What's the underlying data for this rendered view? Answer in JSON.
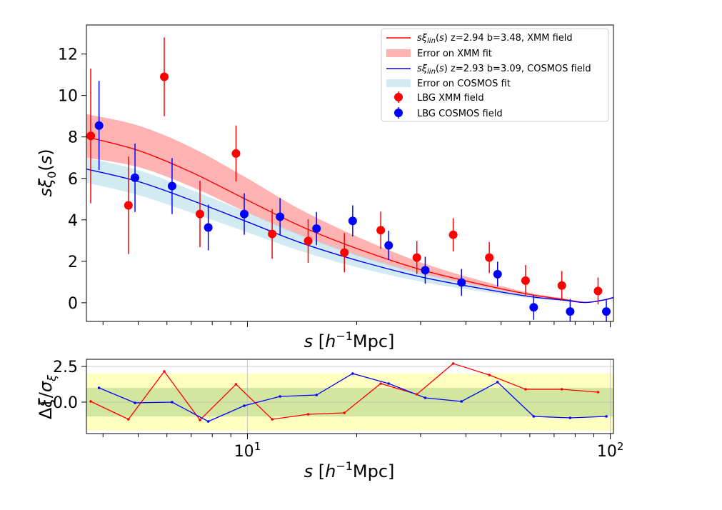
{
  "chart_data": [
    {
      "type": "scatter",
      "xscale": "log",
      "xlim": [
        3.6,
        102
      ],
      "ylim": [
        -0.9,
        13.4
      ],
      "xlabel": "s [h⁻¹Mpc]",
      "ylabel": "sξ₀(s)",
      "ytick_labels": [
        "0",
        "2",
        "4",
        "6",
        "8",
        "10",
        "12"
      ],
      "legend_position": "top-right",
      "legend": [
        {
          "label": "sξ_lin(s) z=2.94 b=3.48, XMM field",
          "color": "#ff0000",
          "kind": "line"
        },
        {
          "label": "Error on XMM fit",
          "color": "#ff9999",
          "kind": "band"
        },
        {
          "label": "sξ_lin(s) z=2.93 b=3.09, COSMOS field",
          "color": "#0000ff",
          "kind": "line"
        },
        {
          "label": "Error on  COSMOS fit",
          "color": "#add8e6",
          "kind": "band"
        },
        {
          "label": "LBG XMM field",
          "color": "#ff0000",
          "kind": "marker"
        },
        {
          "label": "LBG COSMOS field",
          "color": "#0000ff",
          "kind": "marker"
        }
      ],
      "series": [
        {
          "name": "LBG XMM field",
          "color": "#ff0000",
          "x": [
            3.7,
            4.7,
            5.9,
            7.4,
            9.3,
            11.7,
            14.7,
            18.5,
            23.3,
            29.3,
            36.9,
            46.4,
            58.4,
            73.5,
            92.5
          ],
          "y": [
            8.05,
            4.7,
            10.9,
            4.28,
            7.2,
            3.32,
            2.98,
            2.42,
            3.5,
            2.18,
            3.28,
            2.18,
            1.07,
            0.83,
            0.57
          ],
          "yerr": [
            3.25,
            2.35,
            1.9,
            1.6,
            1.35,
            1.2,
            1.05,
            0.95,
            0.9,
            0.8,
            0.8,
            0.75,
            0.75,
            0.7,
            0.65
          ]
        },
        {
          "name": "LBG COSMOS field",
          "color": "#0000ff",
          "x": [
            3.9,
            4.9,
            6.2,
            7.8,
            9.8,
            12.3,
            15.5,
            19.5,
            24.5,
            30.9,
            38.9,
            48.9,
            61.5,
            77.5,
            97.5
          ],
          "y": [
            8.55,
            6.03,
            5.63,
            3.63,
            4.28,
            4.15,
            3.58,
            3.95,
            2.77,
            1.57,
            0.98,
            1.38,
            -0.22,
            -0.42,
            -0.42
          ],
          "yerr": [
            2.15,
            1.65,
            1.35,
            1.1,
            1.0,
            0.9,
            0.8,
            0.75,
            0.7,
            0.65,
            0.65,
            0.6,
            0.6,
            0.6,
            0.55
          ]
        }
      ],
      "model_curves": [
        {
          "name": "XMM fit",
          "color": "#ff0000",
          "band_color": "#ff9999",
          "x": [
            3.6,
            5,
            7,
            10,
            14,
            20,
            30,
            45,
            60,
            75,
            85,
            95,
            102
          ],
          "y": [
            8.0,
            7.35,
            6.3,
            4.95,
            3.7,
            2.62,
            1.6,
            0.85,
            0.4,
            0.15,
            0.02,
            0.12,
            0.25
          ],
          "band_upper": [
            9.1,
            8.55,
            7.5,
            6.0,
            4.5,
            3.2,
            1.95,
            1.02,
            0.48,
            0.2,
            0.04,
            0.16,
            0.3
          ],
          "band_lower": [
            7.0,
            6.55,
            5.6,
            4.35,
            3.25,
            2.28,
            1.4,
            0.74,
            0.34,
            0.12,
            0.0,
            0.1,
            0.22
          ]
        },
        {
          "name": "COSMOS fit",
          "color": "#0000ff",
          "band_color": "#add8e6",
          "x": [
            3.6,
            5,
            7,
            10,
            14,
            20,
            30,
            45,
            60,
            75,
            85,
            95,
            102
          ],
          "y": [
            6.45,
            5.85,
            4.95,
            3.9,
            2.9,
            2.05,
            1.25,
            0.66,
            0.3,
            0.12,
            0.01,
            0.12,
            0.25
          ],
          "band_upper": [
            7.0,
            6.4,
            5.45,
            4.35,
            3.3,
            2.35,
            1.45,
            0.78,
            0.36,
            0.14,
            0.03,
            0.14,
            0.28
          ],
          "band_lower": [
            5.8,
            5.2,
            4.35,
            3.4,
            2.5,
            1.72,
            1.02,
            0.52,
            0.22,
            0.08,
            0.0,
            0.1,
            0.22
          ]
        }
      ]
    },
    {
      "type": "line",
      "xscale": "log",
      "xlim": [
        3.6,
        102
      ],
      "ylim": [
        -2.2,
        3.0
      ],
      "xlabel": "s [h⁻¹Mpc]",
      "ylabel": "Δξ/σξ",
      "ytick_labels": [
        "−0.0",
        "2.5"
      ],
      "ytick_values": [
        0.0,
        2.5
      ],
      "xtick_labels": [
        {
          "base": "10",
          "exp": "1",
          "value": 10
        },
        {
          "base": "10",
          "exp": "2",
          "value": 100
        }
      ],
      "grid": true,
      "bands": [
        {
          "from": -2,
          "to": 2,
          "color": "#ffffc0"
        },
        {
          "from": -1,
          "to": 1,
          "color": "#d2e6a0"
        }
      ],
      "series": [
        {
          "name": "XMM residual",
          "color": "#ff0000",
          "x": [
            3.7,
            4.7,
            5.9,
            7.4,
            9.3,
            11.7,
            14.7,
            18.5,
            23.3,
            29.3,
            36.9,
            46.4,
            58.4,
            73.5,
            92.5
          ],
          "y": [
            0.05,
            -1.2,
            2.15,
            -1.25,
            1.25,
            -1.2,
            -0.85,
            -0.75,
            1.3,
            0.55,
            2.7,
            1.9,
            0.9,
            0.9,
            0.7
          ]
        },
        {
          "name": "COSMOS residual",
          "color": "#0000ff",
          "x": [
            3.9,
            4.9,
            6.2,
            7.8,
            9.8,
            12.3,
            15.5,
            19.5,
            24.5,
            30.9,
            38.9,
            48.9,
            61.5,
            77.5,
            97.5
          ],
          "y": [
            1.0,
            -0.05,
            0.0,
            -1.35,
            -0.25,
            0.4,
            0.5,
            2.0,
            1.3,
            0.3,
            0.05,
            1.4,
            -1.0,
            -1.1,
            -1.0
          ]
        }
      ]
    }
  ]
}
